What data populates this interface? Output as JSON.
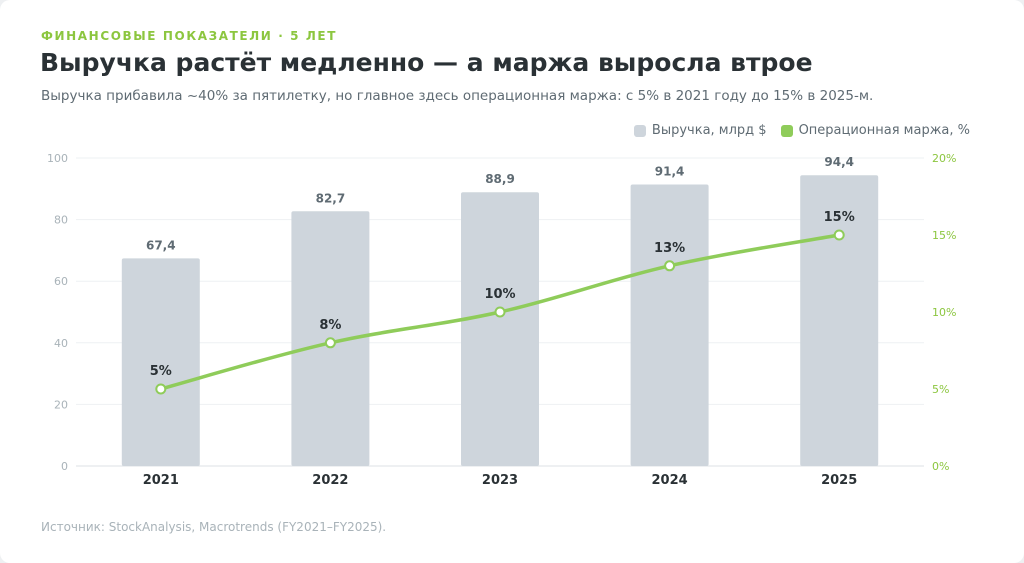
{
  "header": {
    "eyebrow": "ФИНАНСОВЫЕ ПОКАЗАТЕЛИ · 5 ЛЕТ",
    "title": "Выручка растёт медленно — а маржа выросла втрое",
    "subtitle": "Выручка прибавила ~40% за пятилетку, но главное здесь операционная маржа: с 5% в 2021 году до 15% в 2025-м."
  },
  "legend": {
    "revenue": "Выручка, млрд $",
    "margin": "Операционная маржа, %"
  },
  "source": "Источник: StockAnalysis, Macrotrends (FY2021–FY2025).",
  "colors": {
    "bar": "#ced5dc",
    "line": "#8fcc5a",
    "accent": "#8cc63f",
    "grid": "#eef1f3"
  },
  "chart_data": {
    "type": "bar+line",
    "categories": [
      "2021",
      "2022",
      "2023",
      "2024",
      "2025"
    ],
    "series": [
      {
        "name": "Выручка, млрд $",
        "type": "bar",
        "axis": "left",
        "values": [
          67.4,
          82.7,
          88.9,
          91.4,
          94.4
        ],
        "labels": [
          "67,4",
          "82,7",
          "88,9",
          "91,4",
          "94,4"
        ]
      },
      {
        "name": "Операционная маржа, %",
        "type": "line",
        "axis": "right",
        "values": [
          5,
          8,
          10,
          13,
          15
        ],
        "labels": [
          "5%",
          "8%",
          "10%",
          "13%",
          "15%"
        ]
      }
    ],
    "y_left": {
      "range": [
        0,
        100
      ],
      "ticks": [
        "0",
        "20",
        "40",
        "60",
        "80",
        "100"
      ]
    },
    "y_right": {
      "range": [
        0,
        20
      ],
      "ticks": [
        "0%",
        "5%",
        "10%",
        "15%",
        "20%"
      ]
    },
    "grid": true,
    "legend_position": "top-right"
  }
}
